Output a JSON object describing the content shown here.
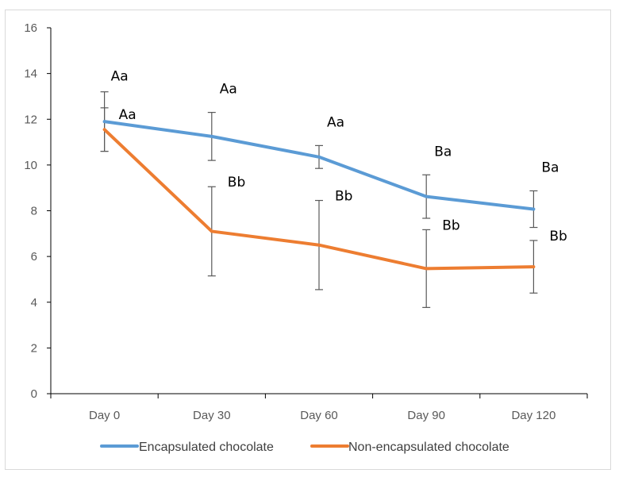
{
  "chart_data": {
    "type": "line",
    "title": "",
    "xlabel": "",
    "ylabel": "",
    "categories": [
      "Day 0",
      "Day 30",
      "Day 60",
      "Day 90",
      "Day 120"
    ],
    "ylim": [
      0,
      16
    ],
    "yticks": [
      0,
      2,
      4,
      6,
      8,
      10,
      12,
      14,
      16
    ],
    "grid": false,
    "legend_position": "bottom",
    "series": [
      {
        "name": "Encapsulated chocolate",
        "color": "#5B9BD5",
        "values": [
          11.9,
          11.25,
          10.35,
          8.62,
          8.07
        ],
        "errors": [
          1.3,
          1.05,
          0.5,
          0.95,
          0.8
        ],
        "labels": [
          "Aa",
          "Aa",
          "Aa",
          "Ba",
          "Ba"
        ]
      },
      {
        "name": "Non-encapsulated chocolate",
        "color": "#ED7D31",
        "values": [
          11.55,
          7.1,
          6.5,
          5.47,
          5.55
        ],
        "errors": [
          0.95,
          1.95,
          1.95,
          1.7,
          1.15
        ],
        "labels": [
          "Aa",
          "Bb",
          "Bb",
          "Bb",
          "Bb"
        ]
      }
    ]
  }
}
